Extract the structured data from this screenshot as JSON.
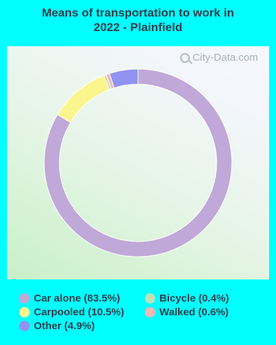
{
  "title_line1": "Means of transportation to work in",
  "title_line2": "2022 - Plainfield",
  "watermark": "City-Data.com",
  "chart_data": {
    "type": "pie",
    "title": "Means of transportation to work in 2022 - Plainfield",
    "series": [
      {
        "name": "Car alone",
        "value": 83.5,
        "label": "Car alone (83.5%)",
        "color": "#c0a8d8"
      },
      {
        "name": "Carpooled",
        "value": 10.5,
        "label": "Carpooled (10.5%)",
        "color": "#fbf58e"
      },
      {
        "name": "Bicycle",
        "value": 0.4,
        "label": "Bicycle (0.4%)",
        "color": "#bde0b6"
      },
      {
        "name": "Walked",
        "value": 0.6,
        "label": "Walked (0.6%)",
        "color": "#f2b7b7"
      },
      {
        "name": "Other",
        "value": 4.9,
        "label": "Other (4.9%)",
        "color": "#9292f0"
      }
    ],
    "legend_placement": "bottom"
  }
}
